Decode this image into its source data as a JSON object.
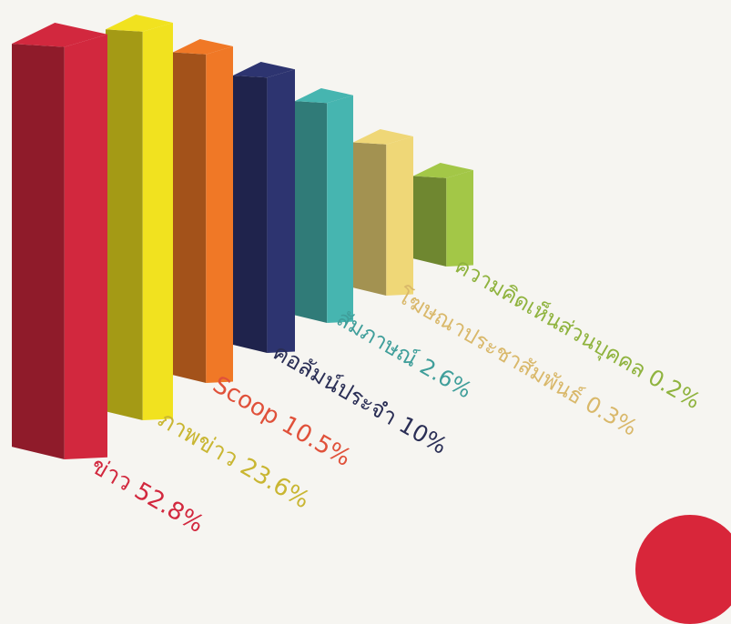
{
  "chart_data": {
    "type": "bar",
    "style": "3d",
    "orientation": "vertical",
    "title": "",
    "xlabel": "",
    "ylabel": "",
    "grid": false,
    "legend": "none",
    "categories": [
      "ข่าว",
      "ภาพข่าว",
      "Scoop",
      "คอลัมน์ประจำ",
      "สัมภาษณ์",
      "โฆษณาประชาสัมพันธ์",
      "ความคิดเห็นส่วนบุคคล"
    ],
    "values": [
      52.8,
      23.6,
      10.5,
      10,
      2.6,
      0.3,
      0.2
    ],
    "data_labels": [
      "ข่าว 52.8%",
      "ภาพข่าว 23.6%",
      "Scoop 10.5%",
      "คอลัมน์ประจำ 10%",
      "สัมภาษณ์ 2.6%",
      "โฆษณาประชาสัมพันธ์ 0.3%",
      "ความคิดเห็นส่วนบุคคล 0.2%"
    ],
    "colors": [
      "#d2283e",
      "#f1e21f",
      "#f07826",
      "#2d3470",
      "#46b5b0",
      "#efd777",
      "#a3c747"
    ],
    "label_colors": [
      "#d2283e",
      "#c9b632",
      "#e0513a",
      "#2a2e55",
      "#3f9e9a",
      "#d9b86a",
      "#8fb33e"
    ]
  }
}
